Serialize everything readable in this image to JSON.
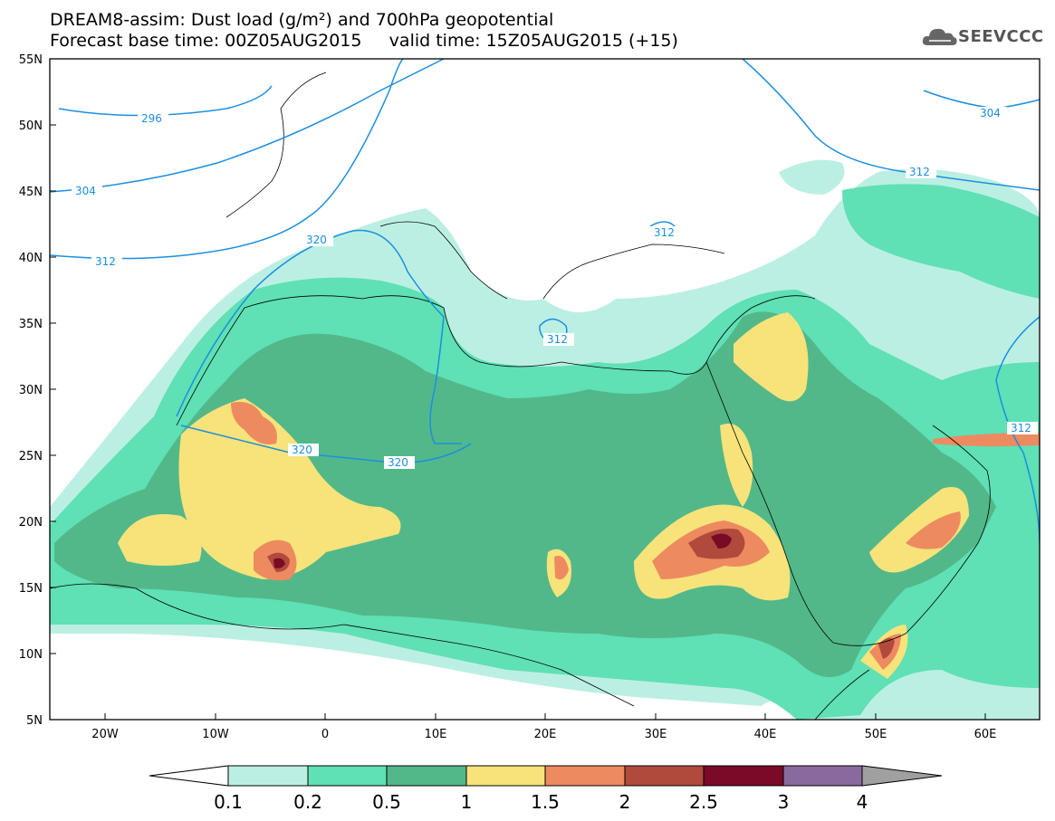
{
  "title_line1": "DREAM8-assim: Dust load (g/m²) and 700hPa geopotential",
  "title_line2": "Forecast base time: 00Z05AUG2015     valid time: 15Z05AUG2015 (+15)",
  "logo_text": "SEEVCCC",
  "lat_labels": [
    "55N",
    "50N",
    "45N",
    "40N",
    "35N",
    "30N",
    "25N",
    "20N",
    "15N",
    "10N",
    "5N"
  ],
  "lon_labels": [
    "20W",
    "10W",
    "0",
    "10E",
    "20E",
    "30E",
    "40E",
    "50E",
    "60E"
  ],
  "contour_labels": [
    "296",
    "304",
    "312",
    "320",
    "320",
    "320",
    "312",
    "312",
    "304",
    "312",
    "312"
  ],
  "colorbar": {
    "ticks": [
      "0.1",
      "0.2",
      "0.5",
      "1",
      "1.5",
      "2",
      "2.5",
      "3",
      "4"
    ],
    "colors": [
      "#ffffff",
      "#bcefe3",
      "#5fe0b5",
      "#52b88a",
      "#f7e37a",
      "#ee8a60",
      "#b04a3c",
      "#7a0a26",
      "#8a6a9e",
      "#a0a0a0"
    ]
  }
}
